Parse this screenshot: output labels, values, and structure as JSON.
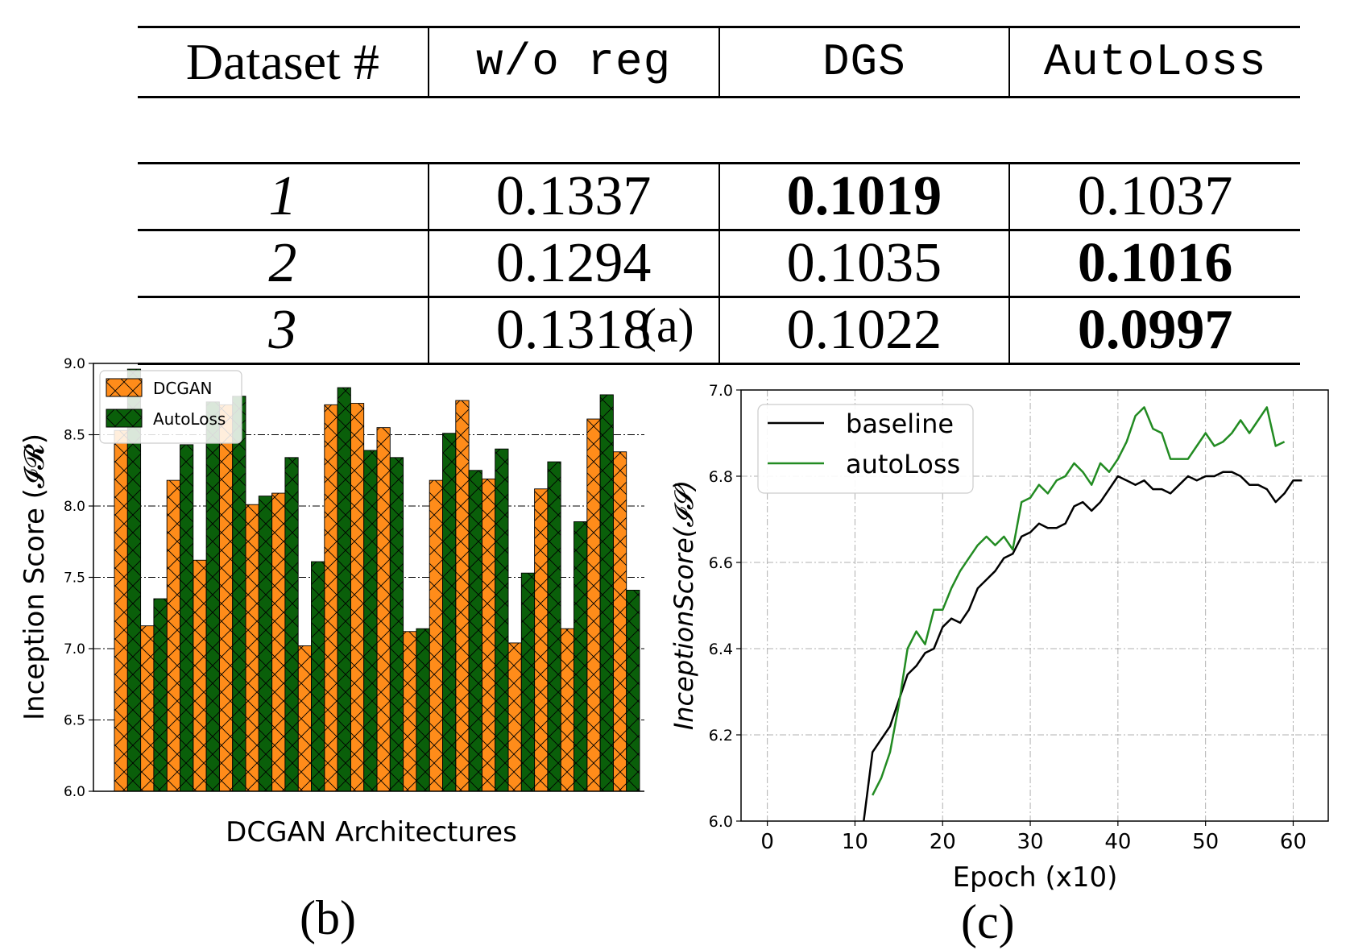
{
  "table": {
    "headers": [
      "Dataset #",
      "w/o reg",
      "DGS",
      "AutoLoss"
    ],
    "rows": [
      {
        "dataset": "1",
        "values": [
          "0.1337",
          "0.1019",
          "0.1037"
        ],
        "best_col": 1
      },
      {
        "dataset": "2",
        "values": [
          "0.1294",
          "0.1035",
          "0.1016"
        ],
        "best_col": 2
      },
      {
        "dataset": "3",
        "values": [
          "0.1318",
          "0.1022",
          "0.0997"
        ],
        "best_col": 2
      }
    ]
  },
  "captions": {
    "a": "(a)",
    "b": "(b)",
    "c": "(c)"
  },
  "chart_data": [
    {
      "type": "bar",
      "xlabel": "DCGAN Architectures",
      "ylabel": "Inception Score (𝓘𝓡)",
      "ylim": [
        6.0,
        9.0
      ],
      "yticks": [
        "6.0",
        "6.5",
        "7.0",
        "7.5",
        "8.0",
        "8.5",
        "9.0"
      ],
      "grid": "horizontal dash-dot",
      "legend": "top-left",
      "series": [
        {
          "name": "DCGAN",
          "color": "#ff8c1a",
          "values": [
            8.53,
            7.16,
            8.18,
            7.62,
            8.71,
            8.01,
            8.09,
            7.02,
            8.71,
            8.72,
            8.55,
            7.12,
            8.18,
            8.74,
            8.19,
            7.04,
            8.12,
            7.14,
            8.61,
            8.38
          ]
        },
        {
          "name": "AutoLoss",
          "color": "#0a5f0a",
          "values": [
            8.96,
            7.35,
            8.43,
            8.73,
            8.77,
            8.07,
            8.34,
            7.61,
            8.83,
            8.39,
            8.34,
            7.14,
            8.51,
            8.25,
            8.4,
            7.53,
            8.31,
            7.89,
            8.78,
            7.41
          ]
        }
      ]
    },
    {
      "type": "line",
      "xlabel": "Epoch (x10)",
      "ylabel": "InceptionScore(𝓘𝓢)",
      "xlim": [
        -3,
        64
      ],
      "ylim": [
        6.0,
        7.0
      ],
      "xticks": [
        "0",
        "10",
        "20",
        "30",
        "40",
        "50",
        "60"
      ],
      "yticks": [
        "6.0",
        "6.2",
        "6.4",
        "6.6",
        "6.8",
        "7.0"
      ],
      "grid": "dash-dot both axes",
      "legend": "top-left",
      "x": [
        11,
        12,
        13,
        14,
        15,
        16,
        17,
        18,
        19,
        20,
        21,
        22,
        23,
        24,
        25,
        26,
        27,
        28,
        29,
        30,
        31,
        32,
        33,
        34,
        35,
        36,
        37,
        38,
        39,
        40,
        41,
        42,
        43,
        44,
        45,
        46,
        47,
        48,
        49,
        50,
        51,
        52,
        53,
        54,
        55,
        56,
        57,
        58,
        59,
        60,
        61
      ],
      "series": [
        {
          "name": "baseline",
          "color": "#000000",
          "values": [
            6.0,
            6.16,
            6.19,
            6.22,
            6.28,
            6.34,
            6.36,
            6.39,
            6.4,
            6.45,
            6.47,
            6.46,
            6.49,
            6.54,
            6.56,
            6.58,
            6.61,
            6.62,
            6.66,
            6.67,
            6.69,
            6.68,
            6.68,
            6.69,
            6.73,
            6.74,
            6.72,
            6.74,
            6.77,
            6.8,
            6.79,
            6.78,
            6.79,
            6.77,
            6.77,
            6.76,
            6.78,
            6.8,
            6.79,
            6.8,
            6.8,
            6.81,
            6.81,
            6.8,
            6.78,
            6.78,
            6.77,
            6.74,
            6.76,
            6.79,
            6.79
          ]
        },
        {
          "name": "autoLoss",
          "color": "#228b22",
          "values": [
            null,
            6.06,
            6.1,
            6.16,
            6.27,
            6.4,
            6.44,
            6.41,
            6.49,
            6.49,
            6.54,
            6.58,
            6.61,
            6.64,
            6.66,
            6.64,
            6.66,
            6.63,
            6.74,
            6.75,
            6.78,
            6.76,
            6.79,
            6.8,
            6.83,
            6.81,
            6.78,
            6.83,
            6.81,
            6.84,
            6.88,
            6.94,
            6.96,
            6.91,
            6.9,
            6.84,
            6.84,
            6.84,
            6.87,
            6.9,
            6.87,
            6.88,
            6.9,
            6.93,
            6.9,
            6.93,
            6.96,
            6.87,
            6.88,
            null,
            null
          ]
        }
      ]
    }
  ]
}
